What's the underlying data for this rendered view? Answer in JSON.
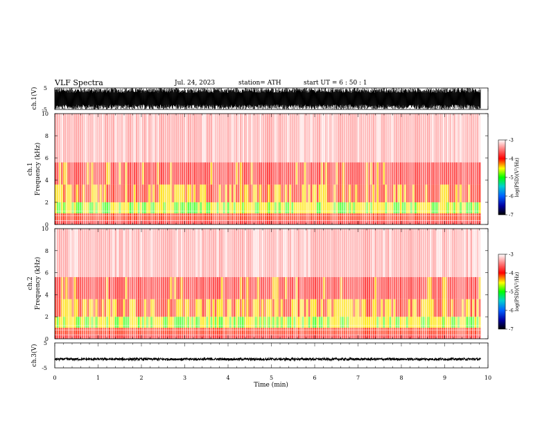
{
  "header": {
    "title": "VLF  Spectra",
    "date": "Jul.  24,  2023",
    "station": "station= ATH",
    "start_ut": "start  UT  =   6  : 50 : 1"
  },
  "chart_data": [
    {
      "type": "line",
      "name": "ch1-waveform",
      "ylabel": "ch.1(V)",
      "ylim": [
        -5,
        5
      ],
      "yticks": [
        "5",
        "-5"
      ],
      "xlim": [
        0,
        10
      ],
      "data_xmax": 9.83,
      "amplitude": 5
    },
    {
      "type": "heatmap",
      "name": "ch1-spectrogram",
      "ylabel_top": "ch.1",
      "ylabel": "Frequency  (kHz)",
      "ylim": [
        0,
        10
      ],
      "yticks": [
        "0",
        "2",
        "4",
        "6",
        "8",
        "10"
      ],
      "xlim": [
        0,
        10
      ],
      "data_xmax": 9.83,
      "colorbar": {
        "label": "log(PSD)(V²/Hz)",
        "range": [
          -7,
          -3
        ],
        "ticks": [
          "-3",
          "-4",
          "-5",
          "-6",
          "-7"
        ]
      }
    },
    {
      "type": "heatmap",
      "name": "ch2-spectrogram",
      "ylabel_top": "ch.2",
      "ylabel": "Frequency  (kHz)",
      "ylim": [
        0,
        10
      ],
      "yticks": [
        "0",
        "2",
        "4",
        "6",
        "8",
        "10"
      ],
      "xlim": [
        0,
        10
      ],
      "data_xmax": 9.83,
      "colorbar": {
        "label": "log(PSD)(V²/Hz)",
        "range": [
          -7,
          -3
        ],
        "ticks": [
          "-3",
          "-4",
          "-5",
          "-6",
          "-7"
        ]
      }
    },
    {
      "type": "line",
      "name": "ch3-waveform",
      "ylabel": "ch.3(V)",
      "ylim": [
        -5,
        5
      ],
      "yticks": [
        "5",
        "-5"
      ],
      "xlim": [
        0,
        10
      ],
      "data_xmax": 9.83,
      "level": -1.5,
      "xlabel": "Time  (min)",
      "xticks": [
        "0",
        "1",
        "2",
        "3",
        "4",
        "5",
        "6",
        "7",
        "8",
        "9",
        "10"
      ]
    }
  ],
  "colors": {
    "background": "#ffffff",
    "axis": "#000000",
    "spectrum_low": "#ffe0e0",
    "spectrum_mid": "#ff1a1a",
    "spectrum_high": "#ffff00",
    "spectrum_peak": "#33ff33"
  }
}
